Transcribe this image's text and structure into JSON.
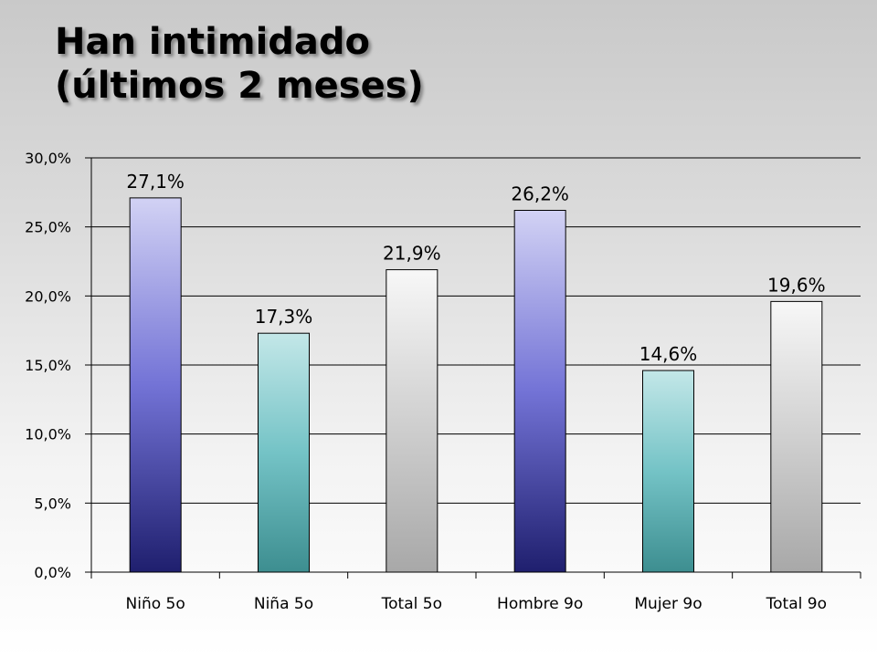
{
  "chart_data": {
    "type": "bar",
    "title_lines": [
      "Han intimidado",
      "(últimos 2 meses)"
    ],
    "xlabel": "",
    "ylabel": "",
    "categories": [
      "Niño 5o",
      "Niña 5o",
      "Total 5o",
      "Hombre 9o",
      "Mujer 9o",
      "Total 9o"
    ],
    "values": [
      27.1,
      17.3,
      21.9,
      26.2,
      14.6,
      19.6
    ],
    "value_labels": [
      "27,1%",
      "17,3%",
      "21,9%",
      "26,2%",
      "14,6%",
      "19,6%"
    ],
    "bar_styles": [
      "purple",
      "teal",
      "gray",
      "purple",
      "teal",
      "gray"
    ],
    "colors": {
      "purple": [
        "#d2d2f4",
        "#7373d6",
        "#1f1f6e"
      ],
      "teal": [
        "#c3e7e8",
        "#74c3c6",
        "#3d8e90"
      ],
      "gray": [
        "#f7f7f7",
        "#d0d0d0",
        "#a8a8a8"
      ]
    },
    "ylim": [
      0,
      30
    ],
    "y_ticks": [
      0,
      5,
      10,
      15,
      20,
      25,
      30
    ],
    "y_tick_labels": [
      "0,0%",
      "5,0%",
      "10,0%",
      "15,0%",
      "20,0%",
      "25,0%",
      "30,0%"
    ],
    "grid": true,
    "legend": "none"
  }
}
